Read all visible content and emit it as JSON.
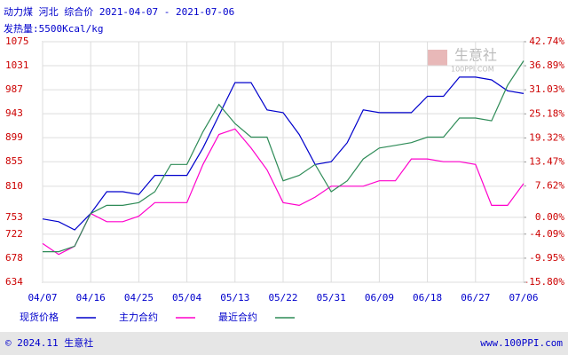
{
  "chart_data": {
    "type": "line",
    "title": "动力煤 河北 综合价 2021-04-07 - 2021-07-06",
    "subtitle": "发热量:5500Kcal/kg",
    "watermark": [
      "生意社",
      "100PPI.COM"
    ],
    "footer_left": "© 2024.11 生意社",
    "footer_right": "www.100PPI.com",
    "categories": [
      "04/07",
      null,
      null,
      "04/16",
      null,
      null,
      "04/25",
      null,
      null,
      "05/04",
      null,
      null,
      "05/13",
      null,
      null,
      "05/22",
      null,
      null,
      "05/31",
      null,
      null,
      "06/09",
      null,
      null,
      "06/18",
      null,
      null,
      "06/27",
      null,
      null,
      "07/06"
    ],
    "series": [
      {
        "name": "现货价格",
        "color": "#0000cc",
        "values": [
          750,
          745,
          730,
          760,
          800,
          800,
          795,
          830,
          830,
          830,
          880,
          940,
          1000,
          1000,
          950,
          945,
          905,
          850,
          855,
          890,
          950,
          945,
          945,
          945,
          975,
          975,
          1010,
          1010,
          1005,
          985,
          980
        ]
      },
      {
        "name": "主力合约",
        "color": "#ff00cc",
        "values": [
          705,
          685,
          700,
          760,
          745,
          745,
          755,
          780,
          780,
          780,
          850,
          905,
          915,
          880,
          840,
          780,
          775,
          790,
          810,
          810,
          810,
          820,
          820,
          860,
          860,
          855,
          855,
          850,
          775,
          775,
          815
        ]
      },
      {
        "name": "最近合约",
        "color": "#2e8b57",
        "values": [
          690,
          690,
          700,
          760,
          775,
          775,
          780,
          800,
          850,
          850,
          910,
          960,
          925,
          900,
          900,
          820,
          830,
          850,
          800,
          820,
          860,
          880,
          885,
          890,
          900,
          900,
          935,
          935,
          930,
          995,
          1040
        ]
      }
    ],
    "ylim": [
      634,
      1075
    ],
    "yticks": [
      634,
      678,
      722,
      753,
      810,
      855,
      899,
      943,
      987,
      1031,
      1075
    ],
    "y2lim": [
      -15.8,
      42.74
    ],
    "y2ticks": [
      {
        "value": -15.8,
        "label": "-15.80%"
      },
      {
        "value": -9.95,
        "label": "-9.95%"
      },
      {
        "value": -4.09,
        "label": "-4.09%"
      },
      {
        "value": 0,
        "label": "0.00%"
      },
      {
        "value": 7.62,
        "label": "7.62%"
      },
      {
        "value": 13.47,
        "label": "13.47%"
      },
      {
        "value": 19.32,
        "label": "19.32%"
      },
      {
        "value": 25.18,
        "label": "25.18%"
      },
      {
        "value": 31.03,
        "label": "31.03%"
      },
      {
        "value": 36.89,
        "label": "36.89%"
      },
      {
        "value": 42.74,
        "label": "42.74%"
      }
    ],
    "grid": true
  }
}
